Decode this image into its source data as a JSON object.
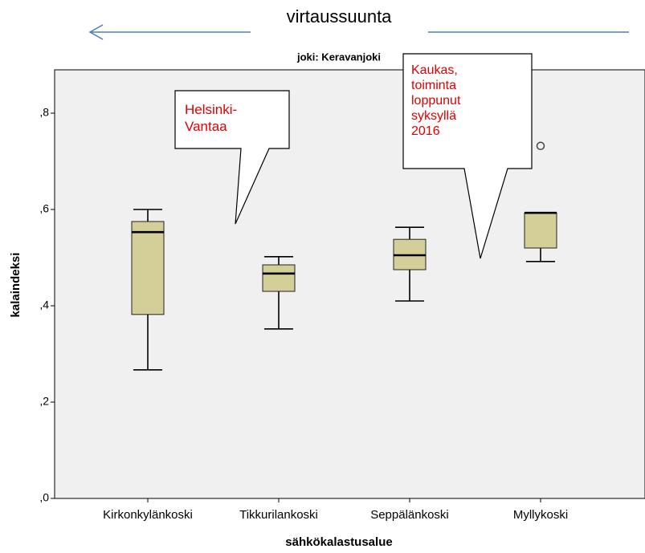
{
  "chart_data": {
    "type": "box",
    "title": "joki: Keravanjoki",
    "annotations": {
      "flow": "virtaussuunta",
      "callout1": [
        "Helsinki-",
        "Vantaa"
      ],
      "callout2": [
        "Kaukas,",
        "toiminta",
        "loppunut",
        "syksyllä",
        "2016"
      ]
    },
    "xlabel": "sähkökalastusalue",
    "ylabel": "kalaindeksi",
    "categories": [
      "Kirkonkylänkoski",
      "Tikkurilankoski",
      "Seppälänkoski",
      "Myllykoski"
    ],
    "boxes": [
      {
        "min": 0.267,
        "q1": 0.382,
        "median": 0.553,
        "q3": 0.575,
        "max": 0.6,
        "outliers": []
      },
      {
        "min": 0.352,
        "q1": 0.43,
        "median": 0.467,
        "q3": 0.485,
        "max": 0.502,
        "outliers": []
      },
      {
        "min": 0.41,
        "q1": 0.475,
        "median": 0.505,
        "q3": 0.538,
        "max": 0.563,
        "outliers": []
      },
      {
        "min": 0.492,
        "q1": 0.52,
        "median": 0.593,
        "q3": 0.593,
        "max": 0.593,
        "outliers": [
          0.732
        ]
      }
    ],
    "color": "#d4cf98",
    "ylim": [
      0,
      0.89
    ],
    "yticks": [
      {
        "value": 0,
        "label": ",0"
      },
      {
        "value": 0.2,
        "label": ",2"
      },
      {
        "value": 0.4,
        "label": ",4"
      },
      {
        "value": 0.6,
        "label": ",6"
      },
      {
        "value": 0.8,
        "label": ",8"
      }
    ]
  }
}
